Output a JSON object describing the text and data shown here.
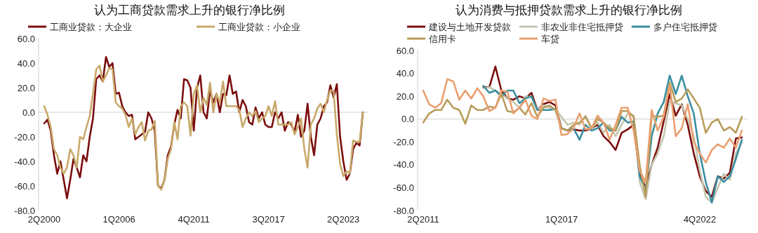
{
  "chart_data": [
    {
      "type": "line",
      "title": "认为工商贷款需求上升的银行净比例",
      "legend": "top",
      "categories": [
        "2Q2000",
        null,
        null,
        null,
        null,
        null,
        null,
        null,
        null,
        null,
        null,
        null,
        null,
        null,
        null,
        null,
        null,
        null,
        null,
        null,
        null,
        null,
        null,
        "1Q2006",
        null,
        null,
        null,
        null,
        null,
        null,
        null,
        null,
        null,
        null,
        null,
        null,
        null,
        null,
        null,
        null,
        null,
        null,
        null,
        null,
        null,
        null,
        "4Q2011",
        null,
        null,
        null,
        null,
        null,
        null,
        null,
        null,
        null,
        null,
        null,
        null,
        null,
        null,
        null,
        null,
        null,
        null,
        null,
        null,
        null,
        null,
        "3Q2017",
        null,
        null,
        null,
        null,
        null,
        null,
        null,
        null,
        null,
        null,
        null,
        null,
        null,
        null,
        null,
        null,
        null,
        null,
        null,
        null,
        null,
        null,
        "2Q2023",
        null,
        null,
        null,
        null,
        null,
        null
      ],
      "ylim": [
        -80,
        60
      ],
      "yticks": [
        {
          "value": -80,
          "label": "-80.0"
        },
        {
          "value": -60,
          "label": "-60.0"
        },
        {
          "value": -40,
          "label": "-40.0"
        },
        {
          "value": -20,
          "label": "-20.0"
        },
        {
          "value": 0,
          "label": "0.0"
        },
        {
          "value": 20,
          "label": "20.0"
        },
        {
          "value": 40,
          "label": "40.0"
        },
        {
          "value": 60,
          "label": "60.0"
        }
      ],
      "series": [
        {
          "name": "工商业贷款：大企业",
          "color": "#7b0d0d",
          "values": [
            -9,
            -6,
            -15,
            -35,
            -50,
            -40,
            -55,
            -70,
            -55,
            -38,
            -45,
            -53,
            -35,
            -40,
            -20,
            -5,
            27,
            30,
            25,
            45,
            37,
            40,
            15,
            16,
            5,
            0,
            -3,
            -2,
            -22,
            -20,
            -18,
            -16,
            0,
            -5,
            -15,
            -60,
            -62,
            -55,
            -35,
            -28,
            -10,
            2,
            -5,
            27,
            26,
            20,
            -15,
            20,
            30,
            0,
            -5,
            18,
            8,
            15,
            0,
            15,
            14,
            30,
            15,
            17,
            0,
            10,
            5,
            -8,
            -10,
            4,
            -5,
            0,
            -10,
            -12,
            -12,
            0,
            -5,
            0,
            -15,
            -8,
            -10,
            -16,
            -2,
            -20,
            -15,
            7,
            -20,
            -35,
            -10,
            -5,
            5,
            8,
            22,
            12,
            23,
            -20,
            -40,
            -55,
            -50,
            -30,
            -25,
            -27,
            0
          ]
        },
        {
          "name": "工商业贷款：小企业",
          "color": "#c8a96a",
          "values": [
            5,
            -2,
            -12,
            -30,
            -35,
            -45,
            -50,
            -45,
            -30,
            -35,
            -45,
            -20,
            -22,
            -12,
            -3,
            15,
            35,
            38,
            25,
            30,
            36,
            35,
            8,
            5,
            3,
            -2,
            -12,
            -5,
            -18,
            -12,
            -8,
            -23,
            -15,
            -14,
            -7,
            -60,
            -63,
            -55,
            -38,
            -30,
            -8,
            -22,
            5,
            8,
            5,
            -19,
            15,
            22,
            0,
            12,
            6,
            24,
            0,
            15,
            8,
            25,
            5,
            5,
            5,
            5,
            2,
            -12,
            -5,
            0,
            -3,
            1,
            -8,
            -5,
            -3,
            5,
            -3,
            9,
            -10,
            -10,
            -10,
            -10,
            -8,
            -18,
            -12,
            -5,
            -30,
            -45,
            -10,
            -5,
            3,
            7,
            0,
            10,
            18,
            17,
            -18,
            -42,
            -52,
            -48,
            -50,
            -23,
            -24,
            -24,
            0
          ]
        }
      ]
    },
    {
      "type": "line",
      "title": "认为消费与抵押贷款需求上升的银行净比例",
      "legend": "top",
      "categories": [
        "2Q2011",
        null,
        null,
        null,
        null,
        null,
        null,
        null,
        null,
        null,
        null,
        null,
        null,
        null,
        null,
        null,
        null,
        null,
        null,
        null,
        null,
        null,
        null,
        "1Q2017",
        null,
        null,
        null,
        null,
        null,
        null,
        null,
        null,
        null,
        null,
        null,
        null,
        null,
        null,
        null,
        null,
        null,
        null,
        null,
        null,
        null,
        null,
        "4Q2022",
        null,
        null,
        null,
        null,
        null,
        null,
        null
      ],
      "ylim": [
        -80,
        60
      ],
      "yticks": [
        {
          "value": -80,
          "label": "-80.0"
        },
        {
          "value": -60,
          "label": "-60.0"
        },
        {
          "value": -40,
          "label": "-40.0"
        },
        {
          "value": -20,
          "label": "-20.0"
        },
        {
          "value": 0,
          "label": "0.0"
        },
        {
          "value": 20,
          "label": "20.0"
        },
        {
          "value": 40,
          "label": "40.0"
        },
        {
          "value": 60,
          "label": "60.0"
        }
      ],
      "series": [
        {
          "name": "建设与土地开发贷款",
          "color": "#7b0d0d",
          "values": [
            null,
            null,
            null,
            null,
            null,
            null,
            null,
            null,
            null,
            null,
            28,
            28,
            46,
            25,
            18,
            17,
            20,
            18,
            23,
            8,
            13,
            15,
            12,
            -8,
            -10,
            -9,
            -10,
            -10,
            -8,
            -5,
            -15,
            -20,
            -27,
            -12,
            -9,
            -5,
            -48,
            -60,
            -40,
            -25,
            -2,
            22,
            3,
            13,
            -5,
            -30,
            -50,
            -63,
            -68,
            -50,
            -52,
            -47,
            -17,
            -16
          ]
        },
        {
          "name": "非农业非住宅抵押贷",
          "color": "#c4c6b0",
          "values": [
            null,
            null,
            null,
            null,
            null,
            null,
            null,
            null,
            null,
            null,
            27,
            28,
            25,
            22,
            18,
            15,
            10,
            20,
            19,
            8,
            12,
            10,
            8,
            2,
            -5,
            -3,
            -5,
            3,
            -8,
            -3,
            -12,
            -5,
            -15,
            -5,
            5,
            3,
            -55,
            -70,
            -40,
            -30,
            -15,
            15,
            14,
            12,
            0,
            -15,
            -45,
            -68,
            -73,
            -60,
            -48,
            -53,
            -30,
            -20
          ]
        },
        {
          "name": "多户住宅抵押贷",
          "color": "#3a8ea0",
          "values": [
            null,
            null,
            null,
            null,
            null,
            null,
            null,
            null,
            null,
            null,
            29,
            23,
            25,
            20,
            25,
            25,
            14,
            18,
            20,
            8,
            8,
            8,
            9,
            -8,
            -10,
            -8,
            -18,
            -5,
            -10,
            -8,
            -3,
            -10,
            -10,
            2,
            -3,
            -2,
            -50,
            -62,
            -15,
            5,
            15,
            38,
            22,
            38,
            20,
            5,
            -30,
            -55,
            -73,
            -50,
            -55,
            -50,
            -35,
            -18
          ]
        },
        {
          "name": "信用卡",
          "color": "#b89c5a",
          "values": [
            -3,
            5,
            8,
            8,
            17,
            10,
            8,
            -4,
            12,
            8,
            8,
            11,
            10,
            22,
            7,
            6,
            10,
            4,
            14,
            2,
            10,
            12,
            8,
            -8,
            -10,
            -5,
            -3,
            2,
            -8,
            0,
            -3,
            -8,
            -10,
            7,
            7,
            2,
            -40,
            -68,
            3,
            2,
            3,
            32,
            15,
            18,
            26,
            18,
            10,
            -12,
            -3,
            0,
            -10,
            -7,
            -12,
            2
          ]
        },
        {
          "name": "车贷",
          "color": "#e9a070",
          "values": [
            25,
            13,
            10,
            14,
            35,
            33,
            17,
            25,
            18,
            27,
            20,
            7,
            10,
            25,
            24,
            5,
            10,
            17,
            3,
            0,
            18,
            16,
            17,
            -14,
            -13,
            -8,
            5,
            -9,
            -8,
            3,
            -3,
            -18,
            -5,
            10,
            10,
            -10,
            -45,
            -55,
            8,
            -10,
            2,
            30,
            -15,
            -8,
            13,
            -20,
            -30,
            -38,
            -27,
            -22,
            -25,
            -17,
            -25,
            -10
          ]
        }
      ]
    }
  ]
}
